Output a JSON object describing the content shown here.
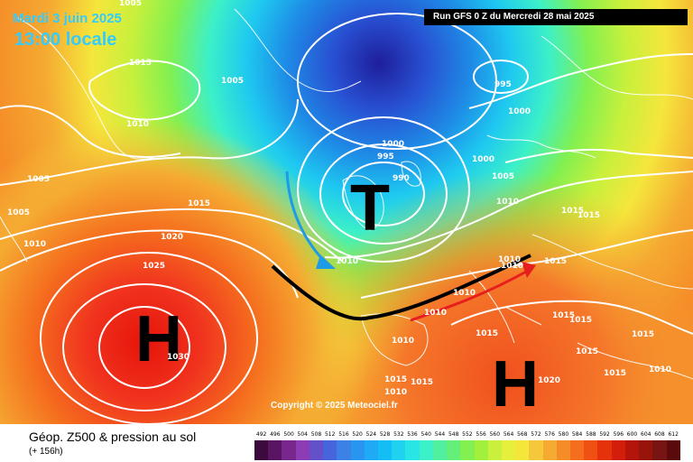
{
  "header": {
    "date": "Mardi 3 juin 2025",
    "time": "13:00 locale",
    "run": "Run GFS 0 Z du Mercredi 28 mai 2025"
  },
  "copyright": "Copyright © 2025 Meteociel.fr",
  "footer": {
    "title": "Géop. Z500 & pression au sol",
    "lead": "(+ 156h)"
  },
  "centers": [
    {
      "letter": "T",
      "type": "low"
    },
    {
      "letter": "H",
      "type": "high"
    },
    {
      "letter": "H",
      "type": "high"
    }
  ],
  "isobar_labels": [
    "1005",
    "1015",
    "1005",
    "1010",
    "1005",
    "1005",
    "1010",
    "1015",
    "1020",
    "1025",
    "1030",
    "1000",
    "995",
    "990",
    "1010",
    "995",
    "1000",
    "1000",
    "1005",
    "1010",
    "1015",
    "1015",
    "1015",
    "1010",
    "1010",
    "1010",
    "1015",
    "1015",
    "1015",
    "1015",
    "1015",
    "1015",
    "1010",
    "1015",
    "1010",
    "1015",
    "1020",
    "1010",
    "1010"
  ],
  "scale": {
    "labels": [
      "492",
      "496",
      "500",
      "504",
      "508",
      "512",
      "516",
      "520",
      "524",
      "528",
      "532",
      "536",
      "540",
      "544",
      "548",
      "552",
      "556",
      "560",
      "564",
      "568",
      "572",
      "576",
      "580",
      "584",
      "588",
      "592",
      "596",
      "600",
      "604",
      "608",
      "612"
    ],
    "colors": [
      "#3c0a3c",
      "#5a1464",
      "#78288c",
      "#8c3cb4",
      "#6450c8",
      "#4664dc",
      "#3c82e6",
      "#2896f0",
      "#1eaaf5",
      "#14bef5",
      "#1ed2f0",
      "#28e6e6",
      "#3cf0c8",
      "#50f0a0",
      "#64f078",
      "#82f050",
      "#a0f03c",
      "#c8f03c",
      "#e6f03c",
      "#f5e63c",
      "#f5c83c",
      "#f5aa32",
      "#f58c28",
      "#f56e1e",
      "#f05014",
      "#e6320a",
      "#d21e0a",
      "#b4140a",
      "#96140a",
      "#781414",
      "#5a0a0a"
    ]
  },
  "colors": {
    "low_core": "#1e1e9b",
    "high_core": "#e6140a",
    "arrow_blue": "#1e9be6",
    "arrow_red": "#e61e1e"
  }
}
